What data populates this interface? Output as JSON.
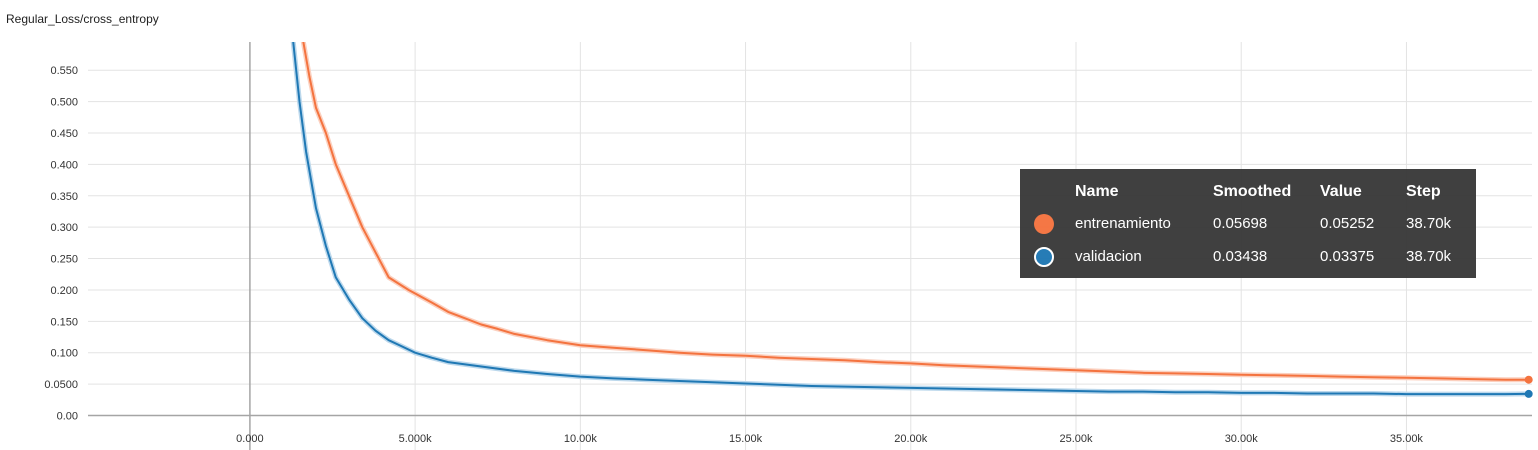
{
  "chart_data": {
    "type": "line",
    "title": "Regular_Loss/cross_entropy",
    "xlabel": "",
    "ylabel": "",
    "xlim": [
      -4900,
      38800
    ],
    "ylim": [
      -0.055,
      0.595
    ],
    "grid": true,
    "x_ticks": [
      "0.000",
      "5.000k",
      "10.00k",
      "15.00k",
      "20.00k",
      "25.00k",
      "30.00k",
      "35.00k"
    ],
    "x_tick_values": [
      0,
      5000,
      10000,
      15000,
      20000,
      25000,
      30000,
      35000
    ],
    "y_ticks": [
      "0.00",
      "0.0500",
      "0.100",
      "0.150",
      "0.200",
      "0.250",
      "0.300",
      "0.350",
      "0.400",
      "0.450",
      "0.500",
      "0.550"
    ],
    "y_tick_values": [
      0,
      0.05,
      0.1,
      0.15,
      0.2,
      0.25,
      0.3,
      0.35,
      0.4,
      0.45,
      0.5,
      0.55
    ],
    "series": [
      {
        "name": "entrenamiento",
        "color": "#f4733f",
        "raw_color": "#fbd0bf",
        "x": [
          1600,
          1800,
          2000,
          2300,
          2600,
          3000,
          3400,
          3800,
          4200,
          4800,
          5500,
          6000,
          6500,
          7000,
          7500,
          8000,
          9000,
          10000,
          11000,
          12000,
          13000,
          14000,
          15000,
          16000,
          17000,
          18000,
          19000,
          20000,
          21000,
          22000,
          23000,
          24000,
          25000,
          26000,
          27000,
          28000,
          29000,
          30000,
          31000,
          32000,
          33000,
          34000,
          35000,
          36000,
          37000,
          38000,
          38700
        ],
        "values": [
          0.6,
          0.54,
          0.49,
          0.45,
          0.4,
          0.35,
          0.3,
          0.26,
          0.22,
          0.2,
          0.18,
          0.165,
          0.155,
          0.145,
          0.138,
          0.13,
          0.12,
          0.112,
          0.108,
          0.104,
          0.1,
          0.097,
          0.095,
          0.092,
          0.09,
          0.088,
          0.085,
          0.083,
          0.08,
          0.078,
          0.076,
          0.074,
          0.072,
          0.07,
          0.068,
          0.067,
          0.066,
          0.065,
          0.064,
          0.063,
          0.062,
          0.061,
          0.06,
          0.059,
          0.058,
          0.057,
          0.05698
        ]
      },
      {
        "name": "validacion",
        "color": "#1f78b4",
        "raw_color": "#bcd8ec",
        "x": [
          1300,
          1500,
          1700,
          2000,
          2300,
          2600,
          3000,
          3400,
          3800,
          4200,
          4600,
          5000,
          5500,
          6000,
          7000,
          8000,
          9000,
          10000,
          11000,
          12000,
          13000,
          14000,
          15000,
          16000,
          17000,
          18000,
          19000,
          20000,
          21000,
          22000,
          23000,
          24000,
          25000,
          26000,
          27000,
          28000,
          29000,
          30000,
          31000,
          32000,
          33000,
          34000,
          35000,
          36000,
          37000,
          38000,
          38700
        ],
        "values": [
          0.6,
          0.5,
          0.42,
          0.33,
          0.27,
          0.22,
          0.185,
          0.155,
          0.135,
          0.12,
          0.11,
          0.1,
          0.092,
          0.085,
          0.078,
          0.071,
          0.066,
          0.062,
          0.059,
          0.057,
          0.055,
          0.053,
          0.051,
          0.049,
          0.047,
          0.046,
          0.045,
          0.044,
          0.043,
          0.042,
          0.041,
          0.04,
          0.039,
          0.038,
          0.038,
          0.037,
          0.037,
          0.036,
          0.036,
          0.035,
          0.035,
          0.035,
          0.034,
          0.034,
          0.034,
          0.034,
          0.03438
        ]
      }
    ]
  },
  "tooltip": {
    "headers": [
      "Name",
      "Smoothed",
      "Value",
      "Step"
    ],
    "rows": [
      {
        "name": "entrenamiento",
        "smoothed": "0.05698",
        "value": "0.05252",
        "step": "38.70k",
        "color": "#f4733f"
      },
      {
        "name": "validacion",
        "smoothed": "0.03438",
        "value": "0.03375",
        "step": "38.70k",
        "color": "#1f78b4"
      }
    ]
  }
}
